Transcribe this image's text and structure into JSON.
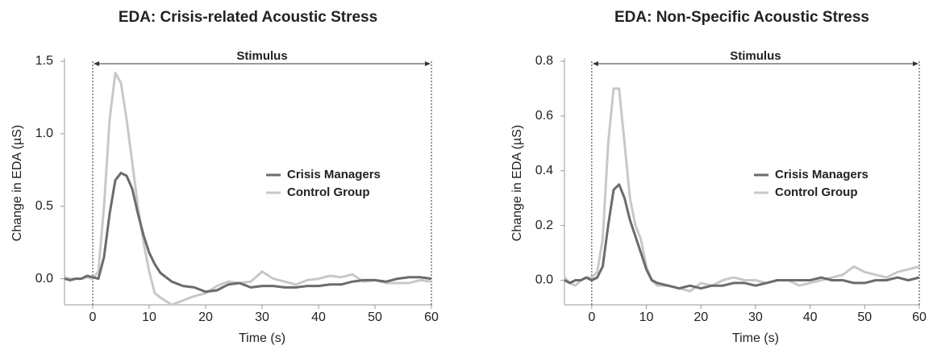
{
  "chart_data": [
    {
      "type": "line",
      "title": "EDA: Crisis-related Acoustic Stress",
      "x_label": "Time (s)",
      "y_label": "Change in EDA (µS)",
      "annotation": {
        "label": "Stimulus",
        "start": 0,
        "end": 60
      },
      "x": [
        -5,
        -4,
        -3,
        -2,
        -1,
        0,
        1,
        2,
        3,
        4,
        5,
        6,
        7,
        8,
        9,
        10,
        11,
        12,
        14,
        16,
        18,
        20,
        22,
        24,
        26,
        28,
        30,
        32,
        34,
        36,
        38,
        40,
        42,
        44,
        46,
        48,
        50,
        52,
        54,
        56,
        58,
        60
      ],
      "series": [
        {
          "name": "Crisis Managers",
          "color": "#6b6b6b",
          "values": [
            0,
            -0.01,
            0,
            0,
            0.02,
            0.01,
            0,
            0.15,
            0.45,
            0.68,
            0.73,
            0.71,
            0.62,
            0.45,
            0.3,
            0.18,
            0.1,
            0.04,
            -0.02,
            -0.05,
            -0.06,
            -0.09,
            -0.08,
            -0.04,
            -0.03,
            -0.06,
            -0.05,
            -0.05,
            -0.06,
            -0.06,
            -0.05,
            -0.05,
            -0.04,
            -0.04,
            -0.02,
            -0.01,
            -0.01,
            -0.02,
            0,
            0.01,
            0.01,
            0
          ]
        },
        {
          "name": "Control Group",
          "color": "#c8c8c8",
          "values": [
            0.01,
            0,
            0,
            0,
            0.01,
            0,
            0.05,
            0.5,
            1.1,
            1.42,
            1.35,
            1.1,
            0.8,
            0.5,
            0.25,
            0.05,
            -0.1,
            -0.13,
            -0.18,
            -0.15,
            -0.12,
            -0.1,
            -0.05,
            -0.02,
            -0.03,
            -0.02,
            0.05,
            0,
            -0.02,
            -0.04,
            -0.01,
            0,
            0.02,
            0.01,
            0.03,
            -0.02,
            -0.01,
            -0.03,
            -0.03,
            -0.03,
            -0.01,
            -0.02
          ]
        }
      ],
      "xlim": [
        -5,
        60
      ],
      "xticks": [
        0,
        10,
        20,
        30,
        40,
        50,
        60
      ],
      "ylim": [
        -0.18,
        1.5
      ],
      "yticks": [
        {
          "value": 0,
          "label": "0.0"
        },
        {
          "value": 0.5,
          "label": "0.5"
        },
        {
          "value": 1,
          "label": "1.0"
        },
        {
          "value": 1.5,
          "label": "1.5"
        }
      ],
      "legend": "center right"
    },
    {
      "type": "line",
      "title": "EDA: Non-Specific Acoustic Stress",
      "x_label": "Time (s)",
      "y_label": "Change in EDA (µS)",
      "annotation": {
        "label": "Stimulus",
        "start": 0,
        "end": 60
      },
      "x": [
        -5,
        -4,
        -3,
        -2,
        -1,
        0,
        1,
        2,
        3,
        4,
        5,
        6,
        7,
        8,
        9,
        10,
        11,
        12,
        14,
        16,
        18,
        20,
        22,
        24,
        26,
        28,
        30,
        32,
        34,
        36,
        38,
        40,
        42,
        44,
        46,
        48,
        50,
        52,
        54,
        56,
        58,
        60
      ],
      "series": [
        {
          "name": "Crisis Managers",
          "color": "#6b6b6b",
          "values": [
            0,
            -0.01,
            0,
            0,
            0.01,
            0,
            0.01,
            0.05,
            0.2,
            0.33,
            0.35,
            0.3,
            0.22,
            0.16,
            0.1,
            0.04,
            0,
            -0.01,
            -0.02,
            -0.03,
            -0.02,
            -0.03,
            -0.02,
            -0.02,
            -0.01,
            -0.01,
            -0.02,
            -0.01,
            0,
            0,
            0,
            0,
            0.01,
            0,
            0,
            -0.01,
            -0.01,
            0,
            0,
            0.01,
            0,
            0.01
          ]
        },
        {
          "name": "Control Group",
          "color": "#c8c8c8",
          "values": [
            0.01,
            -0.01,
            -0.02,
            0,
            0.01,
            0.01,
            0.03,
            0.15,
            0.5,
            0.7,
            0.7,
            0.5,
            0.3,
            0.2,
            0.15,
            0.05,
            0,
            -0.02,
            -0.02,
            -0.03,
            -0.04,
            -0.01,
            -0.02,
            0,
            0.01,
            0,
            0,
            -0.01,
            0,
            0,
            -0.02,
            -0.01,
            0,
            0.01,
            0.02,
            0.05,
            0.03,
            0.02,
            0.01,
            0.03,
            0.04,
            0.05
          ]
        }
      ],
      "xlim": [
        -5,
        60
      ],
      "xticks": [
        0,
        10,
        20,
        30,
        40,
        50,
        60
      ],
      "ylim": [
        -0.09,
        0.8
      ],
      "yticks": [
        {
          "value": 0,
          "label": "0.0"
        },
        0.2,
        0.4,
        0.6,
        0.8
      ],
      "legend": "center right"
    }
  ]
}
